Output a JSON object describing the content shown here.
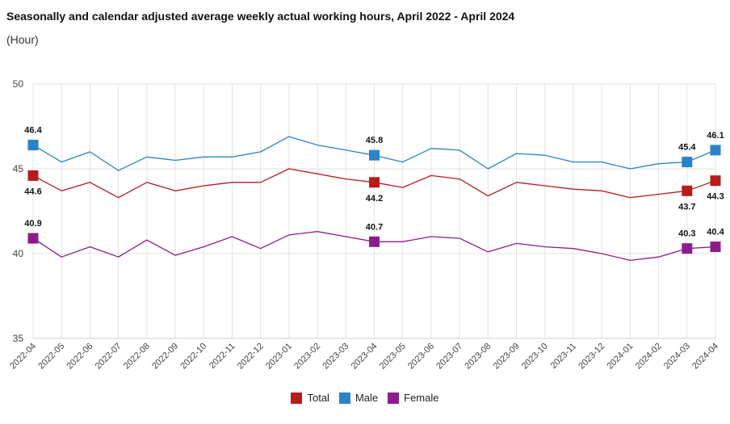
{
  "chart_data": {
    "type": "line",
    "title": "Seasonally and calendar adjusted average weekly actual working hours, April 2022 - April 2024",
    "subtitle": "(Hour)",
    "categories": [
      "2022-04",
      "2022-05",
      "2022-06",
      "2022-07",
      "2022-08",
      "2022-09",
      "2022-10",
      "2022-11",
      "2022-12",
      "2023-01",
      "2023-02",
      "2023-03",
      "2023-04",
      "2023-05",
      "2023-06",
      "2023-07",
      "2023-08",
      "2023-09",
      "2023-10",
      "2023-11",
      "2023-12",
      "2024-01",
      "2024-02",
      "2024-03",
      "2024-04"
    ],
    "ylim": [
      35,
      50
    ],
    "yticks": [
      35,
      40,
      45,
      50
    ],
    "grid": true,
    "legend_position": "bottom-center",
    "series": [
      {
        "name": "Total",
        "color": "#b71c1c",
        "values": [
          44.6,
          43.7,
          44.2,
          43.3,
          44.2,
          43.7,
          44.0,
          44.2,
          44.2,
          45.0,
          44.7,
          44.4,
          44.2,
          43.9,
          44.6,
          44.4,
          43.4,
          44.2,
          44.0,
          43.8,
          43.7,
          43.3,
          43.5,
          43.7,
          44.3
        ],
        "marked": [
          {
            "index": 0,
            "label": "44.6",
            "pos": "below"
          },
          {
            "index": 12,
            "label": "44.2",
            "pos": "below"
          },
          {
            "index": 23,
            "label": "43.7",
            "pos": "below"
          },
          {
            "index": 24,
            "label": "44.3",
            "pos": "below"
          }
        ]
      },
      {
        "name": "Male",
        "color": "#2a83c8",
        "values": [
          46.4,
          45.4,
          46.0,
          44.9,
          45.7,
          45.5,
          45.7,
          45.7,
          46.0,
          46.9,
          46.4,
          46.1,
          45.8,
          45.4,
          46.2,
          46.1,
          45.0,
          45.9,
          45.8,
          45.4,
          45.4,
          45.0,
          45.3,
          45.4,
          46.1
        ],
        "marked": [
          {
            "index": 0,
            "label": "46.4",
            "pos": "above"
          },
          {
            "index": 12,
            "label": "45.8",
            "pos": "above"
          },
          {
            "index": 23,
            "label": "45.4",
            "pos": "above"
          },
          {
            "index": 24,
            "label": "46.1",
            "pos": "above"
          }
        ]
      },
      {
        "name": "Female",
        "color": "#8e1b8e",
        "values": [
          40.9,
          39.8,
          40.4,
          39.8,
          40.8,
          39.9,
          40.4,
          41.0,
          40.3,
          41.1,
          41.3,
          41.0,
          40.7,
          40.7,
          41.0,
          40.9,
          40.1,
          40.6,
          40.4,
          40.3,
          40.0,
          39.6,
          39.8,
          40.3,
          40.4
        ],
        "marked": [
          {
            "index": 0,
            "label": "40.9",
            "pos": "above"
          },
          {
            "index": 12,
            "label": "40.7",
            "pos": "above"
          },
          {
            "index": 23,
            "label": "40.3",
            "pos": "above"
          },
          {
            "index": 24,
            "label": "40.4",
            "pos": "above"
          }
        ]
      }
    ]
  }
}
